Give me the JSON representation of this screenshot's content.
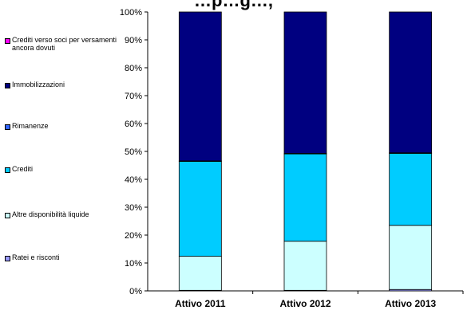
{
  "chart_data": {
    "type": "bar",
    "stacked": true,
    "normalized": true,
    "title": "…p…g…,",
    "xlabel": "",
    "ylabel": "",
    "ylim": [
      0,
      100
    ],
    "yticks": [
      "0%",
      "10%",
      "20%",
      "30%",
      "40%",
      "50%",
      "60%",
      "70%",
      "80%",
      "90%",
      "100%"
    ],
    "categories": [
      "Attivo 2011",
      "Attivo 2012",
      "Attivo 2013"
    ],
    "series": [
      {
        "name": "Ratei e risconti",
        "color": "#9999ff",
        "values": [
          0.2,
          0.2,
          0.5
        ]
      },
      {
        "name": "Altre disponibilità liquide",
        "color": "#ccffff",
        "values": [
          12.2,
          17.6,
          23.0
        ]
      },
      {
        "name": "Crediti",
        "color": "#00ccff",
        "values": [
          34.0,
          31.3,
          25.8
        ]
      },
      {
        "name": "Rimanenze",
        "color": "#3366ff",
        "values": [
          0.2,
          0.2,
          0.2
        ]
      },
      {
        "name": "Immobilizzazioni",
        "color": "#000080",
        "values": [
          53.4,
          50.7,
          50.5
        ]
      },
      {
        "name": "Crediti verso soci per versamenti ancora dovuti",
        "color": "#ff00ff",
        "values": [
          0,
          0,
          0
        ]
      }
    ],
    "legend": {
      "position": "left",
      "order": [
        "Crediti verso soci per versamenti ancora dovuti",
        "Immobilizzazioni",
        "Rimanenze",
        "Crediti",
        "Altre disponibilità liquide",
        "Ratei e risconti"
      ]
    },
    "grid": false
  }
}
